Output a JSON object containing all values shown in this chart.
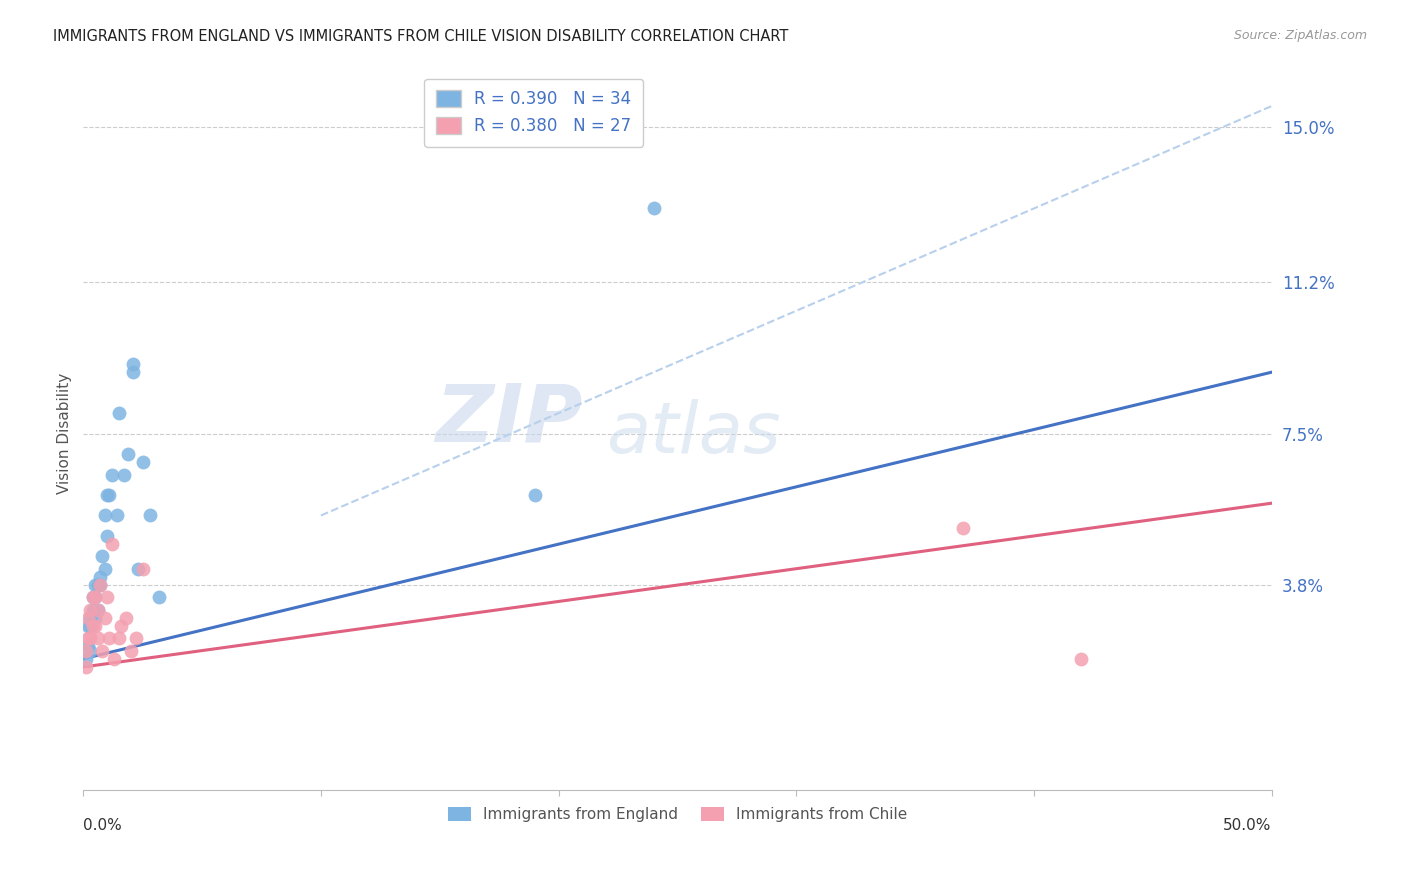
{
  "title": "IMMIGRANTS FROM ENGLAND VS IMMIGRANTS FROM CHILE VISION DISABILITY CORRELATION CHART",
  "source": "Source: ZipAtlas.com",
  "ylabel": "Vision Disability",
  "ytick_labels": [
    "15.0%",
    "11.2%",
    "7.5%",
    "3.8%"
  ],
  "ytick_values": [
    0.15,
    0.112,
    0.075,
    0.038
  ],
  "xlim": [
    0.0,
    0.5
  ],
  "ylim": [
    -0.012,
    0.162
  ],
  "legend_england_R": "0.390",
  "legend_england_N": "34",
  "legend_chile_R": "0.380",
  "legend_chile_N": "27",
  "legend_label_england": "Immigrants from England",
  "legend_label_chile": "Immigrants from Chile",
  "color_england": "#7EB4E2",
  "color_chile": "#F4A0B0",
  "color_england_line": "#4472C4",
  "color_chile_line": "#E06080",
  "color_england_dashed": "#B8D0EC",
  "watermark_zip": "ZIP",
  "watermark_atlas": "atlas",
  "eng_line_x0": 0.0,
  "eng_line_y0": 0.02,
  "eng_line_x1": 0.5,
  "eng_line_y1": 0.09,
  "chi_line_x0": 0.0,
  "chi_line_y0": 0.018,
  "chi_line_x1": 0.5,
  "chi_line_y1": 0.058,
  "dash_line_x0": 0.1,
  "dash_line_y0": 0.055,
  "dash_line_x1": 0.5,
  "dash_line_y1": 0.155,
  "england_x": [
    0.001,
    0.002,
    0.002,
    0.003,
    0.003,
    0.003,
    0.004,
    0.004,
    0.005,
    0.005,
    0.005,
    0.006,
    0.006,
    0.007,
    0.007,
    0.008,
    0.009,
    0.009,
    0.01,
    0.01,
    0.011,
    0.012,
    0.014,
    0.015,
    0.017,
    0.019,
    0.021,
    0.021,
    0.023,
    0.025,
    0.028,
    0.032,
    0.19,
    0.24
  ],
  "england_y": [
    0.02,
    0.023,
    0.028,
    0.022,
    0.028,
    0.03,
    0.032,
    0.035,
    0.03,
    0.035,
    0.038,
    0.038,
    0.032,
    0.038,
    0.04,
    0.045,
    0.055,
    0.042,
    0.06,
    0.05,
    0.06,
    0.065,
    0.055,
    0.08,
    0.065,
    0.07,
    0.09,
    0.092,
    0.042,
    0.068,
    0.055,
    0.035,
    0.06,
    0.13
  ],
  "chile_x": [
    0.001,
    0.001,
    0.002,
    0.002,
    0.003,
    0.003,
    0.004,
    0.004,
    0.005,
    0.005,
    0.006,
    0.006,
    0.007,
    0.008,
    0.009,
    0.01,
    0.011,
    0.012,
    0.013,
    0.015,
    0.016,
    0.018,
    0.02,
    0.022,
    0.025,
    0.37,
    0.42
  ],
  "chile_y": [
    0.018,
    0.022,
    0.025,
    0.03,
    0.025,
    0.032,
    0.028,
    0.035,
    0.028,
    0.035,
    0.032,
    0.025,
    0.038,
    0.022,
    0.03,
    0.035,
    0.025,
    0.048,
    0.02,
    0.025,
    0.028,
    0.03,
    0.022,
    0.025,
    0.042,
    0.052,
    0.02
  ]
}
